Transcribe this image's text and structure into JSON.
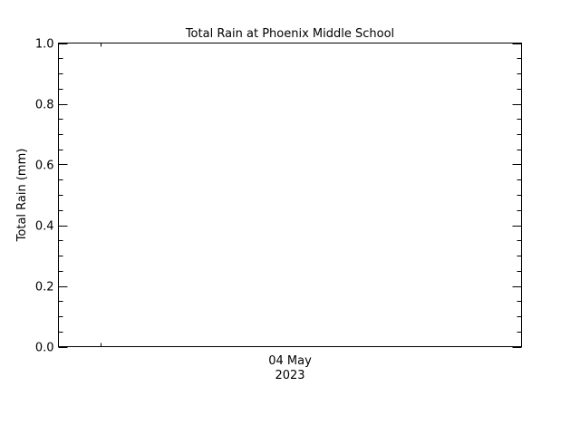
{
  "chart_data": {
    "type": "bar",
    "title": "Total Rain at Phoenix Middle School",
    "xlabel": "",
    "ylabel": "Total Rain (mm)",
    "ylim": [
      0.0,
      1.0
    ],
    "yticks": [
      "0.0",
      "0.2",
      "0.4",
      "0.6",
      "0.8",
      "1.0"
    ],
    "y_minor_step": 0.05,
    "xtick_labels": [
      {
        "line1": "04 May",
        "line2": "2023"
      }
    ],
    "series": [],
    "grid": false,
    "colors": {
      "axis": "#000000",
      "background": "#ffffff"
    }
  }
}
